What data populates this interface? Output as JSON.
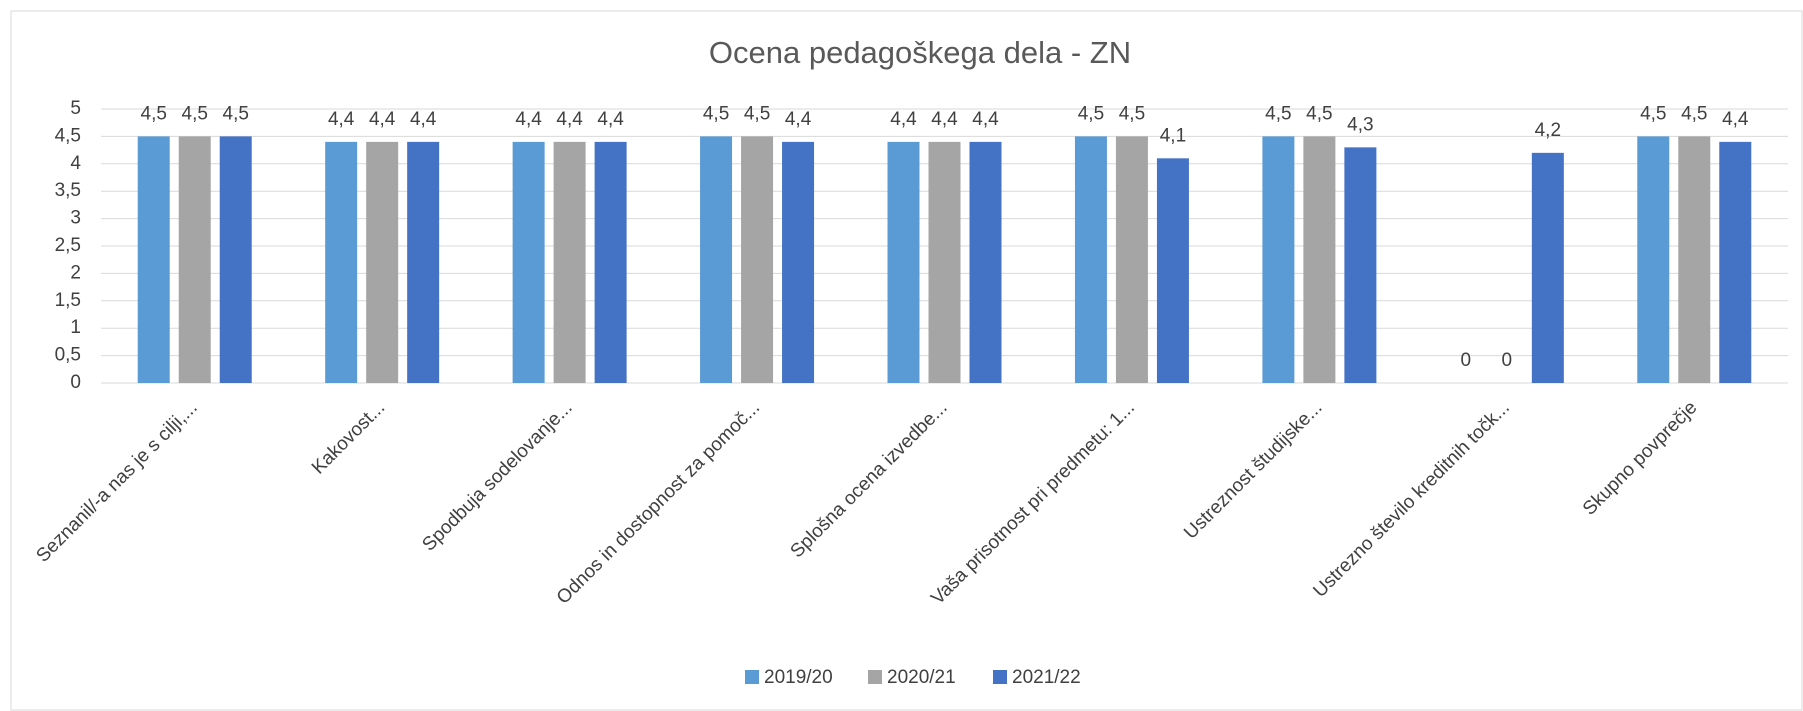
{
  "chart_data": {
    "type": "bar",
    "title": "Ocena pedagoškega dela - ZN",
    "categories": [
      "Seznanil/-a nas je s cilji,...",
      "Kakovost...",
      "Spodbuja sodelovanje...",
      "Odnos in dostopnost za pomoč...",
      "Splošna ocena izvedbe...",
      "Vaša prisotnost pri predmetu: 1...",
      "Ustreznost študijske...",
      "Ustrezno število kreditnih točk...",
      "Skupno povprečje"
    ],
    "series": [
      {
        "name": "2019/20",
        "color": "#5b9bd5",
        "values": [
          4.5,
          4.4,
          4.4,
          4.5,
          4.4,
          4.5,
          4.5,
          0,
          4.5
        ],
        "value_labels": [
          "4,5",
          "4,4",
          "4,4",
          "4,5",
          "4,4",
          "4,5",
          "4,5",
          "0",
          "4,5"
        ]
      },
      {
        "name": "2020/21",
        "color": "#a5a5a5",
        "values": [
          4.5,
          4.4,
          4.4,
          4.5,
          4.4,
          4.5,
          4.5,
          0,
          4.5
        ],
        "value_labels": [
          "4,5",
          "4,4",
          "4,4",
          "4,5",
          "4,4",
          "4,5",
          "4,5",
          "0",
          "4,5"
        ]
      },
      {
        "name": "2021/22",
        "color": "#4472c4",
        "values": [
          4.5,
          4.4,
          4.4,
          4.4,
          4.4,
          4.1,
          4.3,
          4.2,
          4.4
        ],
        "value_labels": [
          "4,5",
          "4,4",
          "4,4",
          "4,4",
          "4,4",
          "4,1",
          "4,3",
          "4,2",
          "4,4"
        ]
      }
    ],
    "ylim": [
      0,
      5
    ],
    "yticks": [
      0,
      {
        "value": 0.5,
        "label": "0,5"
      },
      1,
      {
        "value": 1.5,
        "label": "1,5"
      },
      2,
      {
        "value": 2.5,
        "label": "2,5"
      },
      3,
      {
        "value": 3.5,
        "label": "3,5"
      },
      4,
      {
        "value": 4.5,
        "label": "4,5"
      },
      5
    ],
    "grid": true,
    "legend": "bottom"
  }
}
